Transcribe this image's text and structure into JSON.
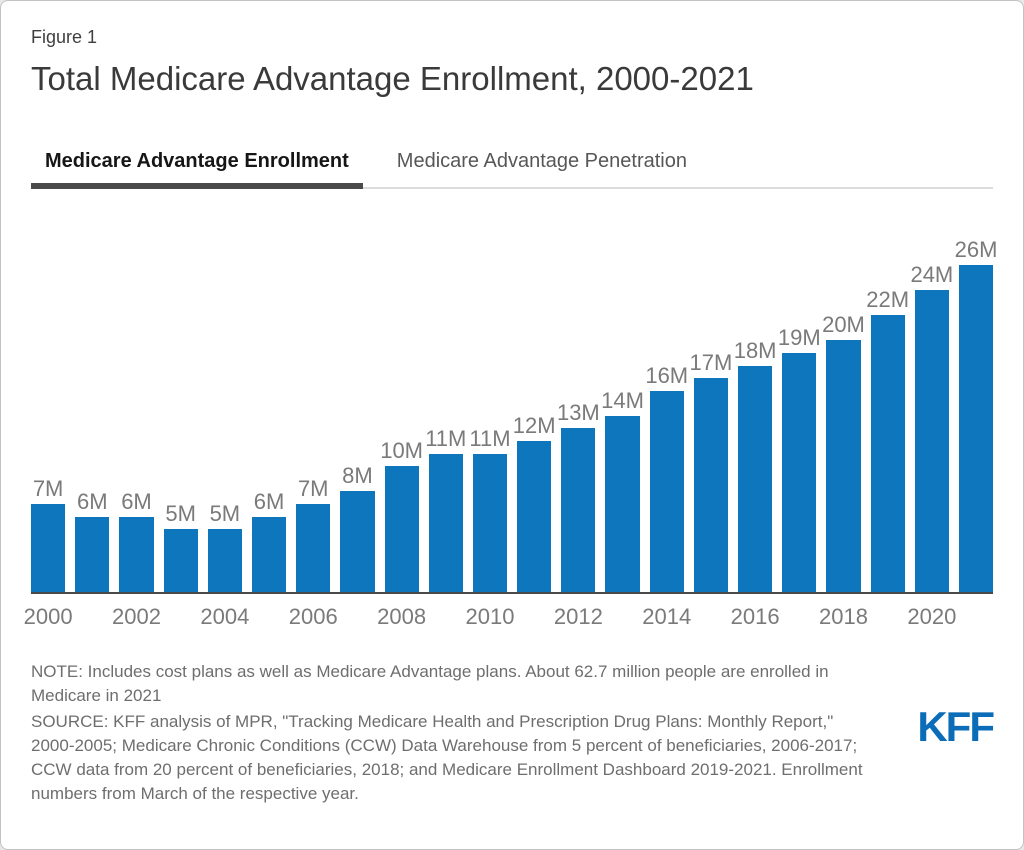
{
  "figure_label": "Figure 1",
  "title": "Total Medicare Advantage Enrollment, 2000-2021",
  "tabs": [
    {
      "label": "Medicare Advantage Enrollment",
      "active": true
    },
    {
      "label": "Medicare Advantage Penetration",
      "active": false
    }
  ],
  "chart_data": {
    "type": "bar",
    "title": "Total Medicare Advantage Enrollment, 2000-2021",
    "categories": [
      "2000",
      "2001",
      "2002",
      "2003",
      "2004",
      "2005",
      "2006",
      "2007",
      "2008",
      "2009",
      "2010",
      "2011",
      "2012",
      "2013",
      "2014",
      "2015",
      "2016",
      "2017",
      "2018",
      "2019",
      "2020",
      "2021"
    ],
    "values": [
      7,
      6,
      6,
      5,
      5,
      6,
      7,
      8,
      10,
      11,
      11,
      12,
      13,
      14,
      16,
      17,
      18,
      19,
      20,
      22,
      24,
      26
    ],
    "labels": [
      "7M",
      "6M",
      "6M",
      "5M",
      "5M",
      "6M",
      "7M",
      "8M",
      "10M",
      "11M",
      "11M",
      "12M",
      "13M",
      "14M",
      "16M",
      "17M",
      "18M",
      "19M",
      "20M",
      "22M",
      "24M",
      "26M"
    ],
    "x_tick_labels": [
      "2000",
      "2002",
      "2004",
      "2006",
      "2008",
      "2010",
      "2012",
      "2014",
      "2016",
      "2018",
      "2020"
    ],
    "unit": "millions of people",
    "ylim": [
      0,
      26
    ],
    "grid": false,
    "legend_position": "none",
    "bar_color": "#0e76bd",
    "label_color": "#7a7a7a",
    "axis_color": "#4a4a4a"
  },
  "notes": {
    "note": "NOTE: Includes cost plans as well as Medicare Advantage plans. About 62.7 million people are enrolled in Medicare in 2021",
    "source": "SOURCE: KFF analysis of MPR, \"Tracking Medicare Health and Prescription Drug Plans: Monthly Report,\" 2000-2005; Medicare Chronic Conditions (CCW) Data Warehouse from 5 percent of beneficiaries, 2006-2017; CCW data from 20 percent of beneficiaries, 2018; and Medicare Enrollment Dashboard 2019-2021. Enrollment numbers from March of the respective year."
  },
  "logo": {
    "text": "KFF",
    "color": "#0b6db8"
  }
}
